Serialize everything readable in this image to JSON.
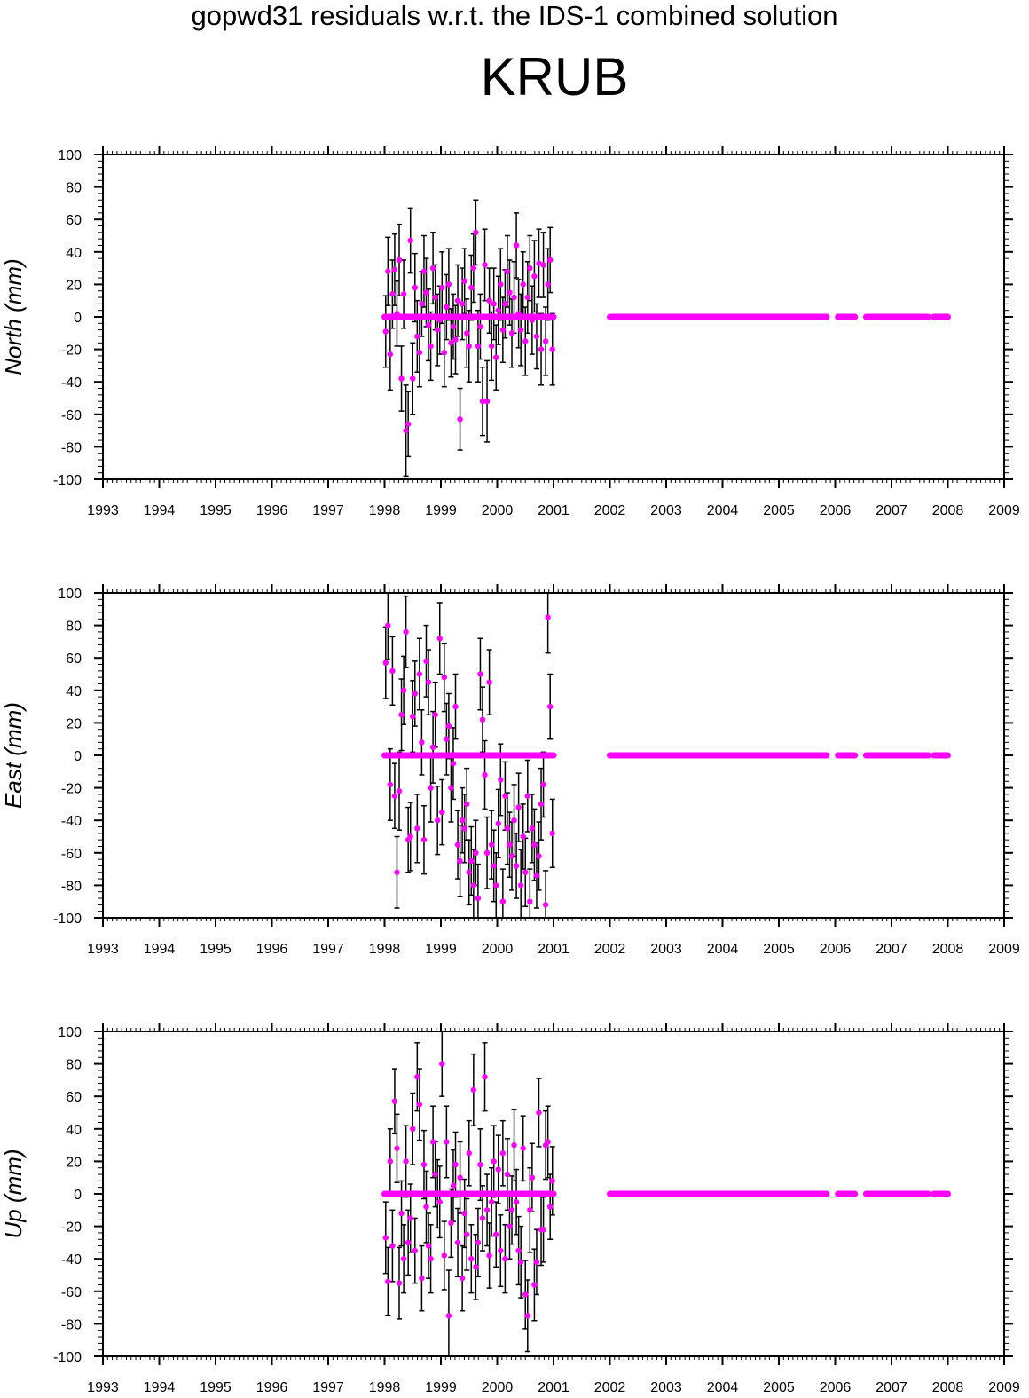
{
  "title": "gopwd31 residuals w.r.t. the IDS-1 combined solution",
  "station": "KRUB",
  "colors": {
    "point": "#ff00ff",
    "errorbar": "#000000",
    "axis": "#000000",
    "background": "#ffffff"
  },
  "chart_data": [
    {
      "type": "scatter",
      "title": "",
      "xlabel": "",
      "ylabel": "North (mm)",
      "xlim": [
        1993,
        2009
      ],
      "ylim": [
        -100,
        100
      ],
      "x_ticks": [
        "1993",
        "1994",
        "1995",
        "1996",
        "1997",
        "1998",
        "1999",
        "2000",
        "2001",
        "2002",
        "2003",
        "2004",
        "2005",
        "2006",
        "2007",
        "2008",
        "2009"
      ],
      "y_ticks": [
        "100",
        "80",
        "60",
        "40",
        "20",
        "0",
        "-20",
        "-40",
        "-60",
        "-80",
        "-100"
      ],
      "error_bars": true,
      "series": [
        {
          "x": [
            1998.02,
            1998.06,
            1998.1,
            1998.14,
            1998.18,
            1998.22,
            1998.26,
            1998.3,
            1998.34,
            1998.38,
            1998.42,
            1998.46,
            1998.5,
            1998.54,
            1998.58,
            1998.62,
            1998.66,
            1998.7,
            1998.74,
            1998.78,
            1998.82,
            1998.86,
            1998.9,
            1998.94,
            1998.98,
            1999.02,
            1999.06,
            1999.1,
            1999.14,
            1999.18,
            1999.22,
            1999.26,
            1999.3,
            1999.34,
            1999.38,
            1999.42,
            1999.46,
            1999.5,
            1999.54,
            1999.58,
            1999.62,
            1999.66,
            1999.7,
            1999.74,
            1999.78,
            1999.82,
            1999.86,
            1999.9,
            1999.94,
            1999.98,
            2000.02,
            2000.06,
            2000.1,
            2000.14,
            2000.18,
            2000.22,
            2000.26,
            2000.3,
            2000.34,
            2000.38,
            2000.42,
            2000.46,
            2000.5,
            2000.54,
            2000.58,
            2000.62,
            2000.66,
            2000.7,
            2000.74,
            2000.78,
            2000.82,
            2000.86,
            2000.9,
            2000.94,
            2000.98
          ],
          "y": [
            -9,
            28,
            -23,
            14,
            29,
            2,
            35,
            -38,
            14,
            -70,
            -66,
            47,
            -38,
            18,
            -12,
            -22,
            8,
            28,
            15,
            -5,
            -18,
            30,
            12,
            -8,
            -2,
            18,
            -22,
            6,
            20,
            -16,
            -6,
            -14,
            10,
            -63,
            8,
            22,
            -10,
            -18,
            18,
            30,
            52,
            -18,
            -6,
            -52,
            32,
            -52,
            10,
            -18,
            8,
            -25,
            4,
            20,
            -8,
            8,
            28,
            15,
            -10,
            12,
            44,
            2,
            -8,
            20,
            -15,
            12,
            30,
            -2,
            25,
            -12,
            33,
            -20,
            32,
            -15,
            20,
            35,
            -20
          ],
          "err": [
            22,
            21,
            22,
            21,
            22,
            20,
            22,
            20,
            21,
            28,
            20,
            20,
            22,
            21,
            22,
            21,
            20,
            22,
            21,
            22,
            21,
            22,
            20,
            22,
            21,
            22,
            21,
            20,
            22,
            21,
            20,
            21,
            22,
            19,
            22,
            20,
            21,
            22,
            20,
            21,
            20,
            22,
            20,
            21,
            22,
            25,
            20,
            21,
            22,
            20,
            21,
            22,
            20,
            21,
            22,
            20,
            21,
            22,
            20,
            21,
            22,
            20,
            21,
            22,
            20,
            21,
            22,
            20,
            21,
            22,
            20,
            21,
            22,
            20,
            22
          ]
        },
        {
          "x_start": 1998.0,
          "x_end": 2001.0,
          "y": 0
        },
        {
          "x_start": 2002.0,
          "x_end": 2005.85,
          "y": 0
        },
        {
          "x_start": 2006.05,
          "x_end": 2006.35,
          "y": 0
        },
        {
          "x_start": 2006.55,
          "x_end": 2007.65,
          "y": 0
        },
        {
          "x_start": 2007.75,
          "x_end": 2008.0,
          "y": 0
        }
      ]
    },
    {
      "type": "scatter",
      "title": "",
      "xlabel": "",
      "ylabel": "East (mm)",
      "xlim": [
        1993,
        2009
      ],
      "ylim": [
        -100,
        100
      ],
      "x_ticks": [
        "1993",
        "1994",
        "1995",
        "1996",
        "1997",
        "1998",
        "1999",
        "2000",
        "2001",
        "2002",
        "2003",
        "2004",
        "2005",
        "2006",
        "2007",
        "2008",
        "2009"
      ],
      "y_ticks": [
        "100",
        "80",
        "60",
        "40",
        "20",
        "0",
        "-20",
        "-40",
        "-60",
        "-80",
        "-100"
      ],
      "error_bars": true,
      "series": [
        {
          "x": [
            1998.02,
            1998.06,
            1998.1,
            1998.14,
            1998.18,
            1998.22,
            1998.26,
            1998.3,
            1998.34,
            1998.38,
            1998.42,
            1998.46,
            1998.5,
            1998.54,
            1998.58,
            1998.62,
            1998.66,
            1998.7,
            1998.74,
            1998.78,
            1998.82,
            1998.86,
            1998.9,
            1998.94,
            1998.98,
            1999.02,
            1999.06,
            1999.1,
            1999.14,
            1999.18,
            1999.22,
            1999.26,
            1999.3,
            1999.34,
            1999.38,
            1999.42,
            1999.46,
            1999.5,
            1999.54,
            1999.58,
            1999.62,
            1999.66,
            1999.7,
            1999.74,
            1999.78,
            1999.82,
            1999.86,
            1999.9,
            1999.94,
            1999.98,
            2000.02,
            2000.06,
            2000.1,
            2000.14,
            2000.18,
            2000.22,
            2000.26,
            2000.3,
            2000.34,
            2000.38,
            2000.42,
            2000.46,
            2000.5,
            2000.54,
            2000.58,
            2000.62,
            2000.66,
            2000.7,
            2000.74,
            2000.78,
            2000.82,
            2000.86,
            2000.9,
            2000.94,
            2000.98
          ],
          "y": [
            57,
            80,
            -18,
            52,
            -25,
            -72,
            -22,
            25,
            40,
            76,
            -52,
            -50,
            24,
            38,
            -45,
            50,
            8,
            -52,
            58,
            45,
            -20,
            5,
            25,
            -40,
            72,
            -35,
            48,
            10,
            18,
            -20,
            -5,
            30,
            -55,
            -65,
            -40,
            -45,
            -30,
            -72,
            -65,
            -80,
            -60,
            -88,
            50,
            22,
            -12,
            -60,
            45,
            -55,
            -68,
            -80,
            -42,
            -15,
            -90,
            -25,
            -45,
            -55,
            -62,
            -40,
            -68,
            -32,
            -80,
            -50,
            -72,
            -25,
            -90,
            -45,
            -55,
            -74,
            -62,
            -30,
            -18,
            -92,
            85,
            30,
            -48
          ],
          "err": [
            22,
            21,
            22,
            21,
            20,
            22,
            24,
            22,
            21,
            22,
            20,
            21,
            22,
            20,
            21,
            22,
            20,
            21,
            22,
            20,
            21,
            22,
            20,
            21,
            22,
            20,
            21,
            22,
            20,
            21,
            22,
            20,
            21,
            22,
            20,
            21,
            22,
            20,
            21,
            22,
            20,
            21,
            22,
            20,
            21,
            22,
            20,
            21,
            22,
            20,
            21,
            22,
            20,
            21,
            22,
            20,
            21,
            22,
            20,
            21,
            22,
            20,
            21,
            22,
            20,
            21,
            22,
            20,
            21,
            22,
            20,
            21,
            22,
            20,
            21
          ]
        },
        {
          "x_start": 1998.0,
          "x_end": 2001.0,
          "y": 0
        },
        {
          "x_start": 2002.0,
          "x_end": 2005.85,
          "y": 0
        },
        {
          "x_start": 2006.05,
          "x_end": 2006.35,
          "y": 0
        },
        {
          "x_start": 2006.55,
          "x_end": 2007.65,
          "y": 0
        },
        {
          "x_start": 2007.75,
          "x_end": 2008.0,
          "y": 0
        }
      ]
    },
    {
      "type": "scatter",
      "title": "",
      "xlabel": "",
      "ylabel": "Up (mm)",
      "xlim": [
        1993,
        2009
      ],
      "ylim": [
        -100,
        100
      ],
      "x_ticks": [
        "1993",
        "1994",
        "1995",
        "1996",
        "1997",
        "1998",
        "1999",
        "2000",
        "2001",
        "2002",
        "2003",
        "2004",
        "2005",
        "2006",
        "2007",
        "2008",
        "2009"
      ],
      "y_ticks": [
        "100",
        "80",
        "60",
        "40",
        "20",
        "0",
        "-20",
        "-40",
        "-60",
        "-80",
        "-100"
      ],
      "error_bars": true,
      "series": [
        {
          "x": [
            1998.02,
            1998.06,
            1998.1,
            1998.14,
            1998.18,
            1998.22,
            1998.26,
            1998.3,
            1998.34,
            1998.38,
            1998.42,
            1998.46,
            1998.5,
            1998.54,
            1998.58,
            1998.62,
            1998.66,
            1998.7,
            1998.74,
            1998.78,
            1998.82,
            1998.86,
            1998.9,
            1998.94,
            1998.98,
            1999.02,
            1999.06,
            1999.1,
            1999.14,
            1999.18,
            1999.22,
            1999.26,
            1999.3,
            1999.34,
            1999.38,
            1999.42,
            1999.46,
            1999.5,
            1999.54,
            1999.58,
            1999.62,
            1999.66,
            1999.7,
            1999.74,
            1999.78,
            1999.82,
            1999.86,
            1999.9,
            1999.94,
            1999.98,
            2000.02,
            2000.06,
            2000.1,
            2000.14,
            2000.18,
            2000.22,
            2000.26,
            2000.3,
            2000.34,
            2000.38,
            2000.42,
            2000.46,
            2000.5,
            2000.54,
            2000.58,
            2000.62,
            2000.66,
            2000.7,
            2000.74,
            2000.78,
            2000.82,
            2000.86,
            2000.9,
            2000.94,
            2000.98
          ],
          "y": [
            -27,
            -54,
            20,
            -32,
            57,
            28,
            -55,
            -12,
            -40,
            20,
            -30,
            -15,
            40,
            -35,
            72,
            55,
            -52,
            18,
            -8,
            -32,
            -40,
            32,
            12,
            0,
            -5,
            80,
            -38,
            32,
            -75,
            -18,
            5,
            18,
            -30,
            10,
            -52,
            -12,
            -25,
            25,
            -40,
            64,
            -45,
            -30,
            18,
            -15,
            72,
            -10,
            -38,
            -5,
            20,
            -25,
            15,
            -35,
            25,
            -40,
            12,
            -20,
            -10,
            30,
            -5,
            -35,
            -42,
            28,
            -62,
            -75,
            -10,
            10,
            -56,
            -42,
            50,
            -22,
            -22,
            30,
            32,
            -8,
            8
          ],
          "err": [
            22,
            21,
            20,
            22,
            20,
            21,
            22,
            20,
            21,
            22,
            20,
            21,
            22,
            20,
            21,
            22,
            20,
            21,
            22,
            20,
            21,
            22,
            20,
            21,
            22,
            20,
            21,
            22,
            28,
            21,
            22,
            20,
            21,
            22,
            20,
            21,
            22,
            20,
            21,
            22,
            20,
            21,
            22,
            20,
            21,
            22,
            20,
            21,
            22,
            20,
            21,
            22,
            20,
            21,
            22,
            20,
            21,
            22,
            20,
            21,
            22,
            20,
            21,
            22,
            26,
            21,
            22,
            20,
            21,
            22,
            20,
            21,
            22,
            20,
            21
          ]
        },
        {
          "x_start": 1998.0,
          "x_end": 2001.0,
          "y": 0
        },
        {
          "x_start": 2002.0,
          "x_end": 2005.85,
          "y": 0
        },
        {
          "x_start": 2006.05,
          "x_end": 2006.35,
          "y": 0
        },
        {
          "x_start": 2006.55,
          "x_end": 2007.65,
          "y": 0
        },
        {
          "x_start": 2007.75,
          "x_end": 2008.0,
          "y": 0
        }
      ]
    }
  ]
}
